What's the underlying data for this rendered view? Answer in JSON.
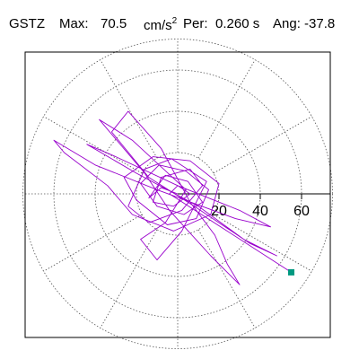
{
  "header": {
    "station": "GSTZ",
    "max_label": "Max:",
    "max_value": "70.5",
    "max_unit": "cm/s",
    "max_unit_exp": "2",
    "per_label": "Per:",
    "per_value": "0.260 s",
    "ang_label": "Ang: -37.8"
  },
  "colors": {
    "trace": "#9900cc",
    "marker": "#009980",
    "grid": "#555555",
    "frame": "#000000"
  },
  "chart_data": {
    "type": "scatter",
    "subtype": "polar particle-motion hodogram",
    "title": "",
    "xlabel": "",
    "ylabel": "",
    "radial_ticks": [
      "20",
      "40",
      "60"
    ],
    "radial_tick_values": [
      20,
      40,
      60
    ],
    "rlim": [
      0,
      75
    ],
    "grid": true,
    "grid_rings": [
      20,
      40,
      60,
      75
    ],
    "grid_spoke_angles_deg": [
      0,
      30,
      60,
      90,
      120,
      150,
      180,
      210,
      240,
      270,
      300,
      330
    ],
    "series": [
      {
        "style": "line",
        "points": [
          [
            0,
            0
          ],
          [
            -8,
            3
          ],
          [
            -14,
            -2
          ],
          [
            -6,
            9
          ],
          [
            5,
            6
          ],
          [
            12,
            -4
          ],
          [
            3,
            -10
          ],
          [
            -10,
            -6
          ],
          [
            -18,
            5
          ],
          [
            -9,
            14
          ],
          [
            4,
            11
          ],
          [
            15,
            2
          ],
          [
            9,
            -12
          ],
          [
            -5,
            -15
          ],
          [
            -20,
            -3
          ],
          [
            -26,
            8
          ],
          [
            -12,
            18
          ],
          [
            6,
            16
          ],
          [
            20,
            5
          ],
          [
            16,
            -10
          ],
          [
            -2,
            -18
          ],
          [
            -22,
            -10
          ],
          [
            -34,
            4
          ],
          [
            -55,
            20
          ],
          [
            -60,
            26
          ],
          [
            -40,
            14
          ],
          [
            -10,
            2
          ],
          [
            28,
            -12
          ],
          [
            45,
            -16
          ],
          [
            30,
            -8
          ],
          [
            0,
            4
          ],
          [
            -30,
            18
          ],
          [
            -44,
            24
          ],
          [
            -20,
            10
          ],
          [
            10,
            -6
          ],
          [
            32,
            -22
          ],
          [
            48,
            -30
          ],
          [
            35,
            -24
          ],
          [
            8,
            -6
          ],
          [
            -14,
            8
          ],
          [
            -32,
            30
          ],
          [
            -24,
            40
          ],
          [
            -8,
            22
          ],
          [
            6,
            -4
          ],
          [
            18,
            -20
          ],
          [
            24,
            -34
          ],
          [
            30,
            -44
          ],
          [
            16,
            -30
          ],
          [
            -4,
            -8
          ],
          [
            -16,
            10
          ],
          [
            -38,
            36
          ],
          [
            -22,
            26
          ],
          [
            4,
            2
          ],
          [
            -6,
            -14
          ],
          [
            -18,
            -22
          ],
          [
            -10,
            -32
          ],
          [
            2,
            -18
          ],
          [
            14,
            6
          ],
          [
            -3,
            17
          ],
          [
            -16,
            12
          ],
          [
            -24,
            -6
          ],
          [
            -14,
            -14
          ],
          [
            2,
            -8
          ],
          [
            12,
            4
          ],
          [
            6,
            12
          ],
          [
            -8,
            8
          ],
          [
            -12,
            -4
          ],
          [
            -2,
            -6
          ],
          [
            6,
            0
          ],
          [
            0,
            4
          ],
          [
            -4,
            0
          ],
          [
            55,
            -38
          ]
        ]
      }
    ],
    "end_marker": {
      "x": 55,
      "y": -38,
      "shape": "square"
    }
  }
}
